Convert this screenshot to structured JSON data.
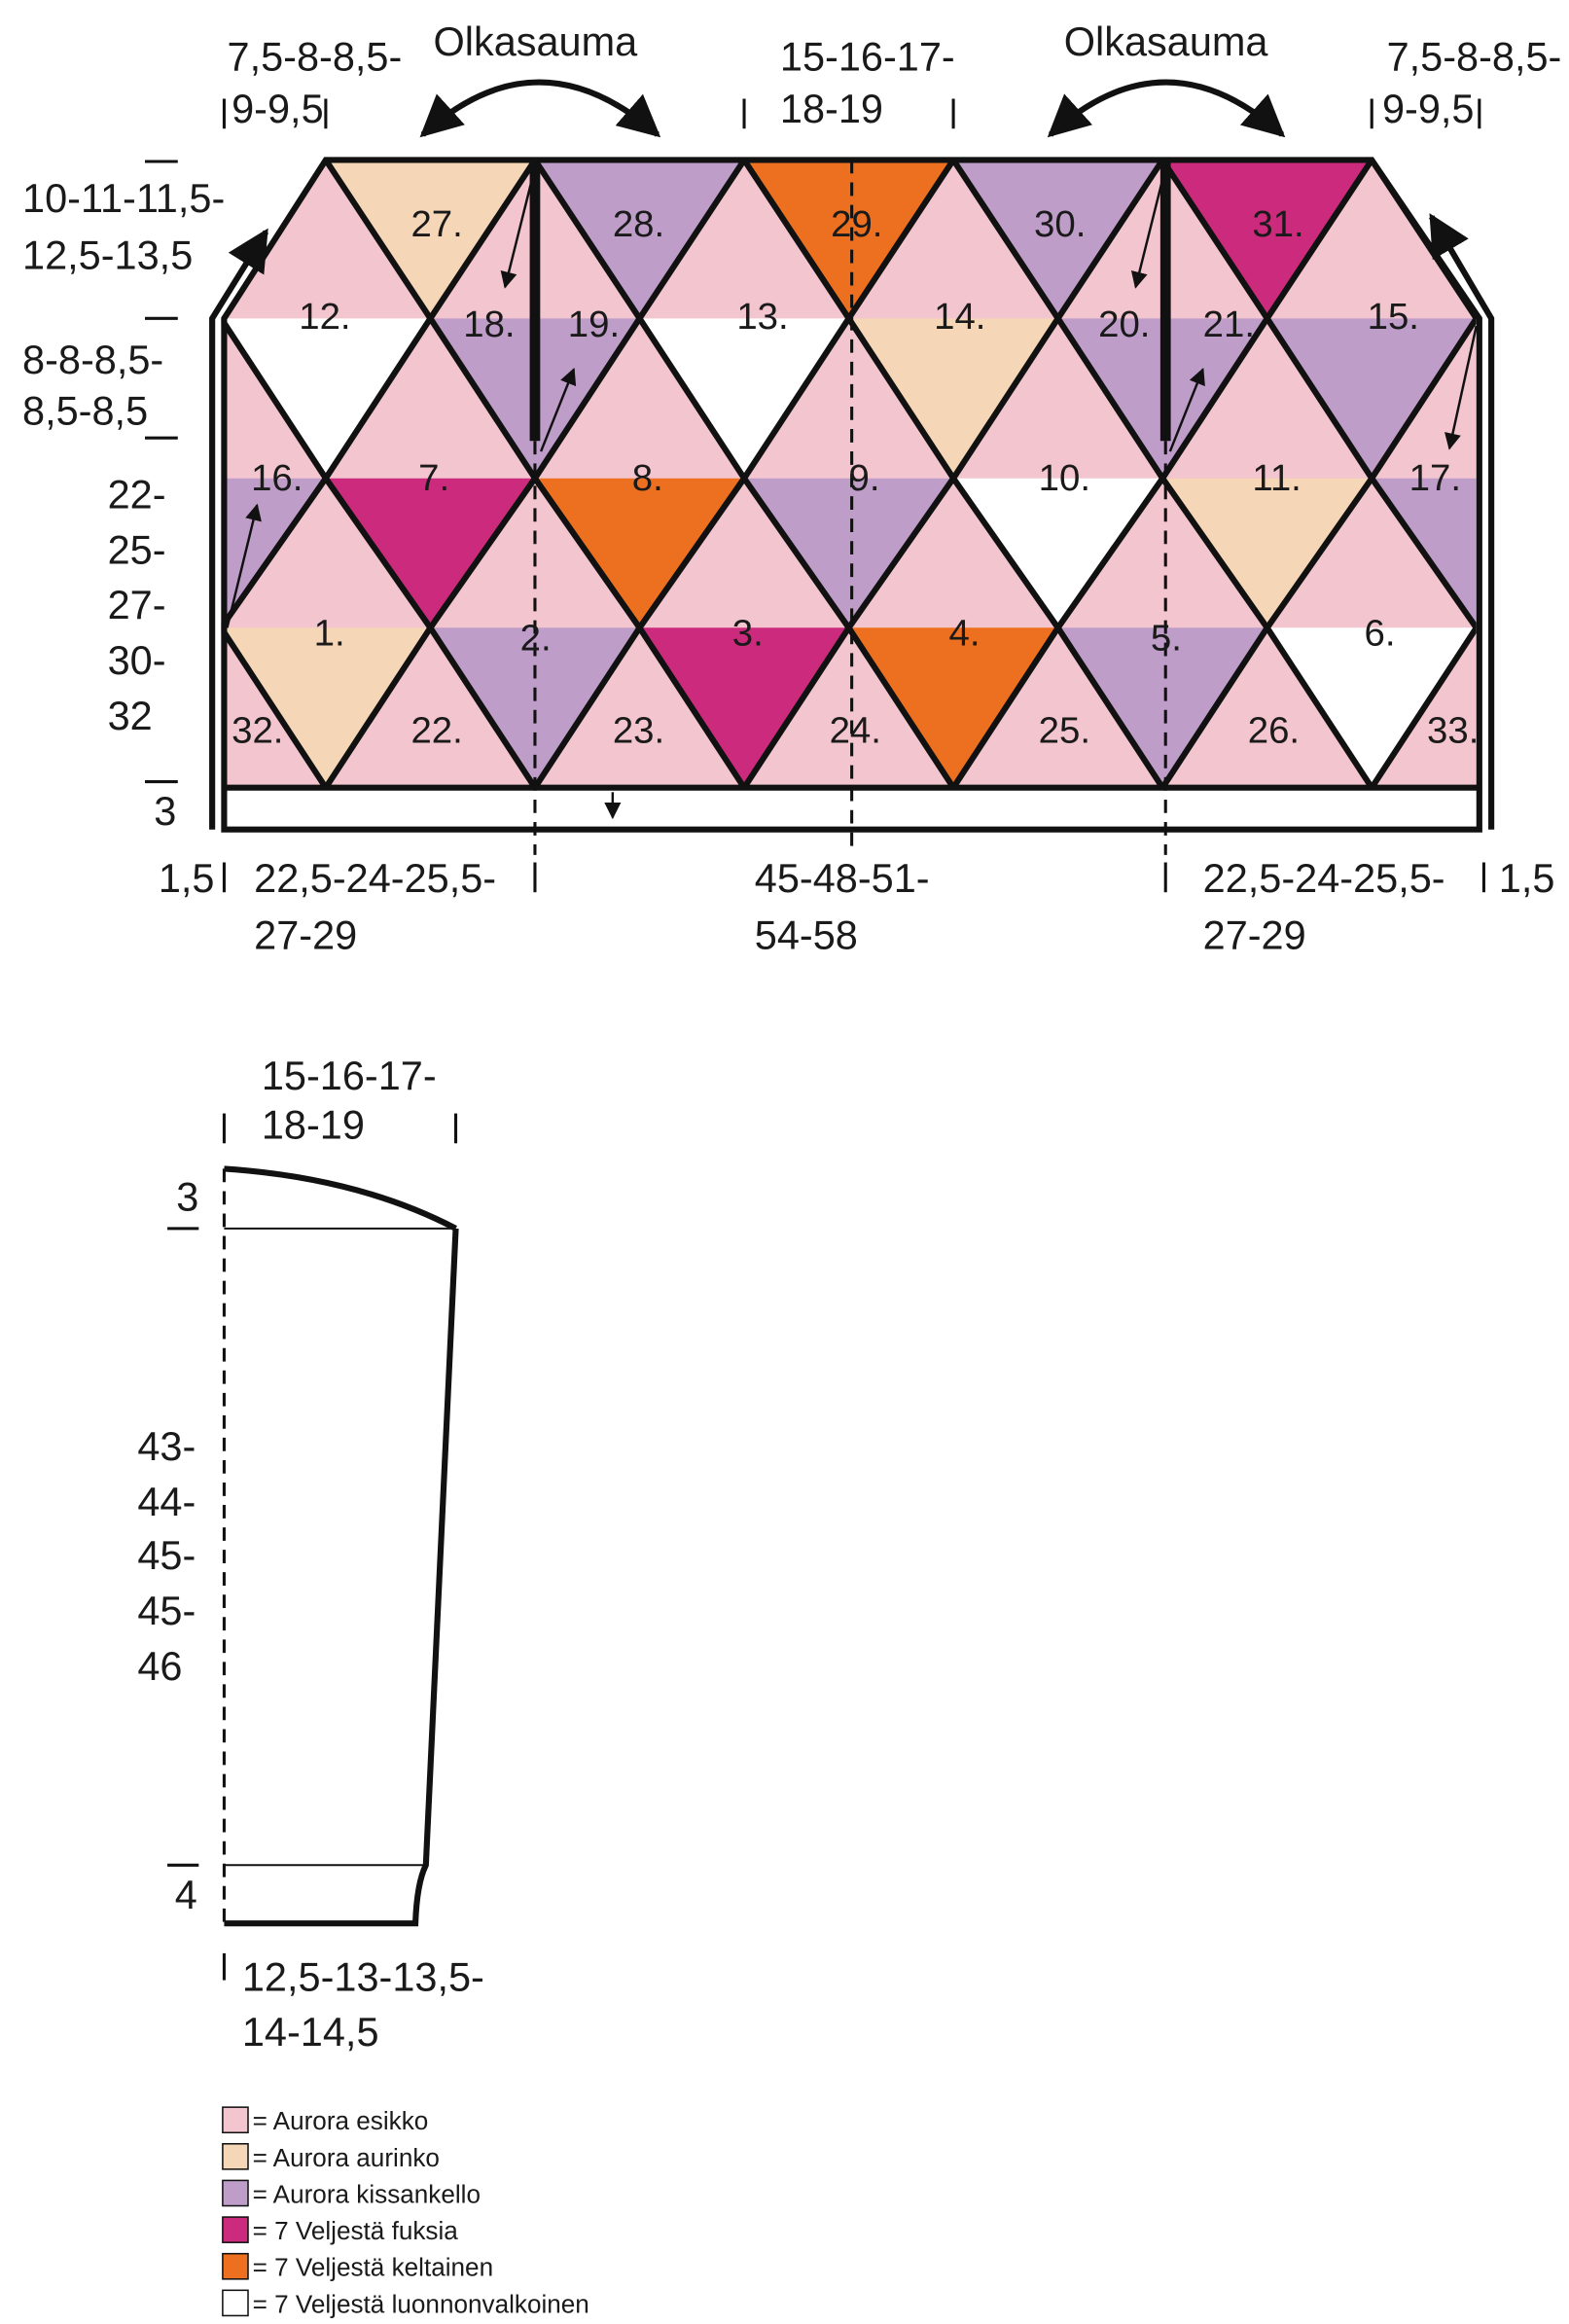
{
  "body": {
    "shoulder_labels": [
      "Olkasauma",
      "Olkasauma"
    ],
    "top_left": [
      "7,5-8-8,5-",
      "9-9,5"
    ],
    "top_middle": [
      "15-16-17-",
      "18-19"
    ],
    "top_right": [
      "7,5-8-8,5-",
      "9-9,5"
    ],
    "left_upper": [
      "10-11-11,5-",
      "12,5-13,5"
    ],
    "left_middle": [
      "8-8-8,5-",
      "8,5-8,5"
    ],
    "left_lower": [
      "22-",
      "25-",
      "27-",
      "30-",
      "32"
    ],
    "left_rib": "3",
    "bottom_edge_left": "1,5",
    "bottom_left": [
      "22,5-24-25,5-",
      "27-29"
    ],
    "bottom_middle": [
      "45-48-51-",
      "54-58"
    ],
    "bottom_right": [
      "22,5-24-25,5-",
      "27-29"
    ],
    "bottom_edge_right": "1,5",
    "triangles": [
      "1.",
      "2.",
      "3.",
      "4.",
      "5.",
      "6.",
      "7.",
      "8.",
      "9.",
      "10.",
      "11.",
      "12.",
      "13.",
      "14.",
      "15.",
      "16.",
      "17.",
      "18.",
      "19.",
      "20.",
      "21.",
      "22.",
      "23.",
      "24.",
      "25.",
      "26.",
      "27.",
      "28.",
      "29.",
      "30.",
      "31.",
      "32.",
      "33."
    ]
  },
  "sleeve": {
    "top": [
      "15-16-17-",
      "18-19"
    ],
    "cap": "3",
    "length": [
      "43-",
      "44-",
      "45-",
      "45-",
      "46"
    ],
    "cuff": "4",
    "bottom": [
      "12,5-13-13,5-",
      "14-14,5"
    ]
  },
  "legend": [
    {
      "label": "= Aurora esikko",
      "color": "#f2c5cf"
    },
    {
      "label": "= Aurora aurinko",
      "color": "#f5d6b6"
    },
    {
      "label": "= Aurora kissankello",
      "color": "#bf9dc9"
    },
    {
      "label": "= 7 Veljestä fuksia",
      "color": "#cc2b7d"
    },
    {
      "label": "= 7 Veljestä keltainen",
      "color": "#ec701f"
    },
    {
      "label": "= 7 Veljestä luonnonvalkoinen",
      "color": "#ffffff"
    }
  ]
}
